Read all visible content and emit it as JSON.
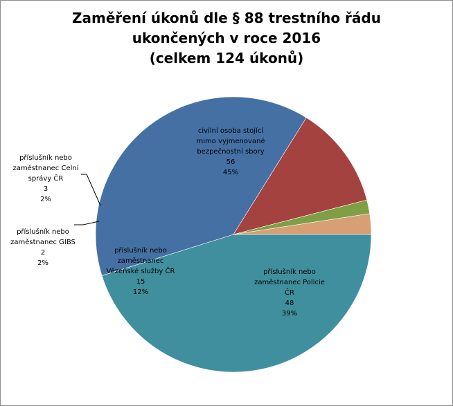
{
  "chart_data": {
    "type": "pie",
    "title": [
      "Zaměření úkonů dle § 88 trestního řádu",
      "ukončených v roce 2016",
      "(celkem 124 úkonů)"
    ],
    "slices": [
      {
        "label": [
          "civilní osoba stojící",
          "mimo vyjmenované",
          "bezpečnostní sbory"
        ],
        "value": 56,
        "percent": "45%",
        "color": "#3f8f9f"
      },
      {
        "label": [
          "příslušník nebo",
          "zaměstnanec Policie",
          "ČR"
        ],
        "value": 48,
        "percent": "39%",
        "color": "#4570a4"
      },
      {
        "label": [
          "příslušník nebo",
          "zaměstnanec",
          "Vězeňské  služby ČR"
        ],
        "value": 15,
        "percent": "12%",
        "color": "#a3423f"
      },
      {
        "label": [
          "příslušník nebo",
          "zaměstnanec GIBS"
        ],
        "value": 2,
        "percent": "2%",
        "color": "#7f9f45"
      },
      {
        "label": [
          "příslušník nebo",
          "zaměstnanec Celní",
          "správy ČR"
        ],
        "value": 3,
        "percent": "2%",
        "color": "#d79f74"
      }
    ]
  }
}
